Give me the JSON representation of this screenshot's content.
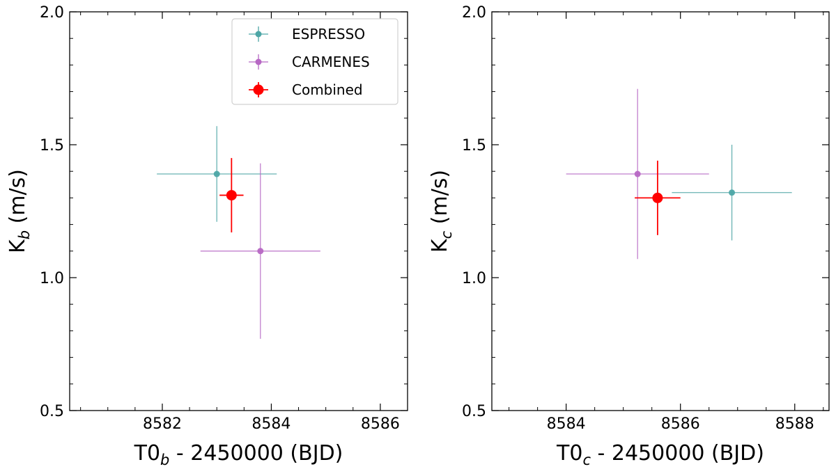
{
  "chart_data": [
    {
      "type": "scatter",
      "panel": "left",
      "xlabel": "T0_b - 2450000 (BJD)",
      "xlabel_main": "T0",
      "xlabel_sub": "b",
      "xlabel_rest": " - 2450000 (BJD)",
      "ylabel": "K_b (m/s)",
      "ylabel_main": "K",
      "ylabel_sub": "b",
      "ylabel_rest": " (m/s)",
      "xlim": [
        8580.3,
        8586.5
      ],
      "ylim": [
        0.5,
        2.0
      ],
      "xticks": [
        8582,
        8584,
        8586
      ],
      "xtick_labels": [
        "8582",
        "8584",
        "8586"
      ],
      "yticks": [
        0.5,
        1.0,
        1.5,
        2.0
      ],
      "ytick_labels": [
        "0.5",
        "1.0",
        "1.5",
        "2.0"
      ],
      "x_minor_step": 0.5,
      "y_minor_step": 0.1,
      "series": [
        {
          "name": "ESPRESSO",
          "color": "#4da6a6",
          "marker": "small",
          "x": 8583.0,
          "y": 1.39,
          "xerr": [
            1.1,
            1.1
          ],
          "yerr": [
            0.18,
            0.18
          ]
        },
        {
          "name": "CARMENES",
          "color": "#b768c4",
          "marker": "small",
          "x": 8583.8,
          "y": 1.1,
          "xerr": [
            1.1,
            1.1
          ],
          "yerr": [
            0.33,
            0.33
          ]
        },
        {
          "name": "Combined",
          "color": "#ff0000",
          "marker": "large",
          "x": 8583.27,
          "y": 1.31,
          "xerr": [
            0.22,
            0.22
          ],
          "yerr": [
            0.14,
            0.14
          ]
        }
      ],
      "legend": {
        "location": "top-right",
        "entries": [
          {
            "label": "ESPRESSO",
            "color": "#4da6a6",
            "marker": "small"
          },
          {
            "label": "CARMENES",
            "color": "#b768c4",
            "marker": "small"
          },
          {
            "label": "Combined",
            "color": "#ff0000",
            "marker": "large"
          }
        ]
      }
    },
    {
      "type": "scatter",
      "panel": "right",
      "xlabel": "T0_c - 2450000 (BJD)",
      "xlabel_main": "T0",
      "xlabel_sub": "c",
      "xlabel_rest": " - 2450000 (BJD)",
      "ylabel": "K_c (m/s)",
      "ylabel_main": "K",
      "ylabel_sub": "c",
      "ylabel_rest": " (m/s)",
      "xlim": [
        8582.7,
        8588.6
      ],
      "ylim": [
        0.5,
        2.0
      ],
      "xticks": [
        8584,
        8586,
        8588
      ],
      "xtick_labels": [
        "8584",
        "8586",
        "8588"
      ],
      "yticks": [
        0.5,
        1.0,
        1.5,
        2.0
      ],
      "ytick_labels": [
        "0.5",
        "1.0",
        "1.5",
        "2.0"
      ],
      "x_minor_step": 0.5,
      "y_minor_step": 0.1,
      "series": [
        {
          "name": "ESPRESSO",
          "color": "#4da6a6",
          "marker": "small",
          "x": 8586.9,
          "y": 1.32,
          "xerr": [
            1.05,
            1.05
          ],
          "yerr": [
            0.18,
            0.18
          ]
        },
        {
          "name": "CARMENES",
          "color": "#b768c4",
          "marker": "small",
          "x": 8585.25,
          "y": 1.39,
          "xerr": [
            1.25,
            1.25
          ],
          "yerr": [
            0.32,
            0.32
          ]
        },
        {
          "name": "Combined",
          "color": "#ff0000",
          "marker": "large",
          "x": 8585.6,
          "y": 1.3,
          "xerr": [
            0.4,
            0.4
          ],
          "yerr": [
            0.14,
            0.14
          ]
        }
      ]
    }
  ]
}
